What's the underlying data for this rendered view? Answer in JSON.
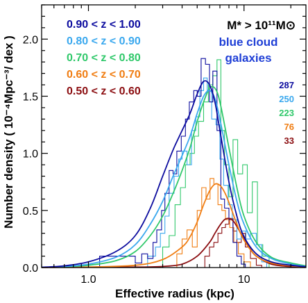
{
  "chart_data": {
    "type": "line",
    "xlabel": "Effective radius (kpc)",
    "ylabel": "Number density ( 10⁻⁴Mpc⁻³/ dex )",
    "xscale": "log",
    "xlim": [
      0.5,
      25
    ],
    "ylim": [
      0,
      2.3
    ],
    "xticks": [
      {
        "value": 1.0,
        "label": "1.0"
      },
      {
        "value": 10,
        "label": "10"
      }
    ],
    "yticks": [
      {
        "value": 0.0,
        "label": "0.0"
      },
      {
        "value": 0.5,
        "label": "0.5"
      },
      {
        "value": 1.0,
        "label": "1.0"
      },
      {
        "value": 1.5,
        "label": "1.5"
      },
      {
        "value": 2.0,
        "label": "2.0"
      }
    ],
    "grid": false,
    "annotation": {
      "mass_cut": "M* > 10¹¹M⊙",
      "sample_line1": "blue cloud",
      "sample_line2": "galaxies",
      "color": "#1f3fd6"
    },
    "legend_position": "top-left",
    "series": [
      {
        "name": "0.90 < z < 1.00",
        "color": "#0b0b9e",
        "count": "287",
        "fit": [
          [
            0.5,
            0.003
          ],
          [
            0.7,
            0.015
          ],
          [
            1.0,
            0.05
          ],
          [
            1.5,
            0.14
          ],
          [
            2.0,
            0.28
          ],
          [
            2.5,
            0.52
          ],
          [
            3.0,
            0.8
          ],
          [
            3.5,
            1.03
          ],
          [
            4.0,
            1.2
          ],
          [
            4.5,
            1.35
          ],
          [
            5.0,
            1.52
          ],
          [
            5.5,
            1.63
          ],
          [
            6.0,
            1.6
          ],
          [
            6.5,
            1.45
          ],
          [
            7.0,
            1.2
          ],
          [
            8.0,
            0.75
          ],
          [
            9.0,
            0.45
          ],
          [
            10.0,
            0.27
          ],
          [
            12.0,
            0.12
          ],
          [
            15.0,
            0.05
          ],
          [
            20.0,
            0.02
          ],
          [
            25.0,
            0.008
          ]
        ],
        "hist": [
          [
            0.72,
            0.0
          ],
          [
            1.05,
            0.0
          ],
          [
            1.18,
            0.1
          ],
          [
            1.6,
            0.1
          ],
          [
            2.0,
            0.04
          ],
          [
            2.2,
            0.12
          ],
          [
            2.4,
            0.08
          ],
          [
            2.6,
            0.22
          ],
          [
            2.75,
            0.33
          ],
          [
            2.95,
            0.5
          ],
          [
            3.1,
            0.65
          ],
          [
            3.3,
            0.85
          ],
          [
            3.5,
            0.82
          ],
          [
            3.7,
            1.02
          ],
          [
            3.95,
            1.15
          ],
          [
            4.2,
            1.3
          ],
          [
            4.45,
            1.45
          ],
          [
            4.75,
            1.55
          ],
          [
            5.0,
            1.5
          ],
          [
            5.3,
            1.83
          ],
          [
            5.65,
            1.78
          ],
          [
            6.0,
            1.45
          ],
          [
            6.3,
            1.72
          ],
          [
            6.7,
            1.2
          ],
          [
            7.1,
            0.6
          ],
          [
            7.5,
            0.52
          ],
          [
            8.0,
            0.42
          ],
          [
            8.5,
            0.22
          ],
          [
            9.0,
            0.1
          ],
          [
            9.6,
            0.03
          ],
          [
            10.2,
            0.0
          ]
        ]
      },
      {
        "name": "0.80 < z < 0.90",
        "color": "#3aa8ee",
        "count": "250",
        "fit": [
          [
            0.5,
            0.002
          ],
          [
            0.7,
            0.01
          ],
          [
            1.0,
            0.03
          ],
          [
            1.5,
            0.09
          ],
          [
            2.0,
            0.2
          ],
          [
            2.5,
            0.38
          ],
          [
            3.0,
            0.58
          ],
          [
            3.5,
            0.8
          ],
          [
            4.0,
            0.98
          ],
          [
            4.5,
            1.15
          ],
          [
            5.0,
            1.35
          ],
          [
            5.5,
            1.5
          ],
          [
            6.0,
            1.55
          ],
          [
            6.5,
            1.48
          ],
          [
            7.0,
            1.3
          ],
          [
            8.0,
            0.9
          ],
          [
            9.0,
            0.58
          ],
          [
            10.0,
            0.38
          ],
          [
            12.0,
            0.18
          ],
          [
            15.0,
            0.08
          ],
          [
            20.0,
            0.03
          ],
          [
            25.0,
            0.01
          ]
        ],
        "hist": [
          [
            2.3,
            0.0
          ],
          [
            2.4,
            0.1
          ],
          [
            2.7,
            0.18
          ],
          [
            2.9,
            0.3
          ],
          [
            3.1,
            0.45
          ],
          [
            3.3,
            0.65
          ],
          [
            3.55,
            0.8
          ],
          [
            3.8,
            0.95
          ],
          [
            4.0,
            1.02
          ],
          [
            4.3,
            0.9
          ],
          [
            4.6,
            1.2
          ],
          [
            4.9,
            1.32
          ],
          [
            5.2,
            1.55
          ],
          [
            5.5,
            1.66
          ],
          [
            5.8,
            1.55
          ],
          [
            6.2,
            1.3
          ],
          [
            6.6,
            1.25
          ],
          [
            7.0,
            0.95
          ],
          [
            7.4,
            0.72
          ],
          [
            7.9,
            0.55
          ],
          [
            8.4,
            0.42
          ],
          [
            9.0,
            0.25
          ],
          [
            9.6,
            0.32
          ],
          [
            10.3,
            0.25
          ],
          [
            11.0,
            0.3
          ],
          [
            12.0,
            0.2
          ],
          [
            13.0,
            0.05
          ],
          [
            14.0,
            0.0
          ]
        ]
      },
      {
        "name": "0.70 < z < 0.80",
        "color": "#2fc86a",
        "count": "223",
        "fit": [
          [
            0.5,
            0.002
          ],
          [
            0.7,
            0.008
          ],
          [
            1.0,
            0.02
          ],
          [
            1.5,
            0.06
          ],
          [
            2.0,
            0.14
          ],
          [
            2.5,
            0.28
          ],
          [
            3.0,
            0.45
          ],
          [
            3.5,
            0.65
          ],
          [
            4.0,
            0.85
          ],
          [
            4.5,
            1.05
          ],
          [
            5.0,
            1.28
          ],
          [
            5.5,
            1.45
          ],
          [
            6.0,
            1.57
          ],
          [
            6.5,
            1.57
          ],
          [
            7.0,
            1.45
          ],
          [
            8.0,
            1.05
          ],
          [
            9.0,
            0.7
          ],
          [
            10.0,
            0.45
          ],
          [
            12.0,
            0.22
          ],
          [
            15.0,
            0.09
          ],
          [
            20.0,
            0.04
          ],
          [
            25.0,
            0.015
          ]
        ],
        "hist": [
          [
            2.8,
            0.0
          ],
          [
            3.0,
            0.18
          ],
          [
            3.3,
            0.28
          ],
          [
            3.6,
            0.55
          ],
          [
            3.9,
            0.7
          ],
          [
            4.2,
            0.9
          ],
          [
            4.5,
            1.0
          ],
          [
            4.8,
            1.15
          ],
          [
            5.1,
            1.28
          ],
          [
            5.5,
            1.45
          ],
          [
            5.9,
            1.6
          ],
          [
            6.3,
            1.68
          ],
          [
            6.7,
            1.82
          ],
          [
            7.1,
            1.2
          ],
          [
            7.5,
            0.9
          ],
          [
            8.0,
            0.62
          ],
          [
            8.5,
            1.12
          ],
          [
            9.1,
            0.82
          ],
          [
            9.8,
            0.9
          ],
          [
            10.5,
            0.48
          ],
          [
            11.3,
            0.75
          ],
          [
            12.2,
            0.2
          ],
          [
            13.2,
            0.1
          ],
          [
            14.5,
            0.0
          ]
        ]
      },
      {
        "name": "0.60 < z < 0.70",
        "color": "#f07d12",
        "count": "76",
        "fit": [
          [
            0.5,
            0.001
          ],
          [
            1.0,
            0.005
          ],
          [
            2.0,
            0.02
          ],
          [
            3.0,
            0.07
          ],
          [
            4.0,
            0.18
          ],
          [
            4.5,
            0.27
          ],
          [
            5.0,
            0.4
          ],
          [
            5.5,
            0.55
          ],
          [
            6.0,
            0.67
          ],
          [
            6.5,
            0.73
          ],
          [
            7.0,
            0.72
          ],
          [
            7.5,
            0.66
          ],
          [
            8.0,
            0.57
          ],
          [
            9.0,
            0.38
          ],
          [
            10.0,
            0.24
          ],
          [
            12.0,
            0.1
          ],
          [
            15.0,
            0.04
          ],
          [
            20.0,
            0.015
          ],
          [
            25.0,
            0.005
          ]
        ],
        "hist": [
          [
            3.4,
            0.0
          ],
          [
            3.7,
            0.12
          ],
          [
            4.0,
            0.25
          ],
          [
            4.3,
            0.33
          ],
          [
            4.65,
            0.18
          ],
          [
            5.0,
            0.5
          ],
          [
            5.35,
            0.7
          ],
          [
            5.7,
            0.6
          ],
          [
            6.05,
            0.78
          ],
          [
            6.4,
            0.73
          ],
          [
            6.8,
            0.55
          ],
          [
            7.2,
            0.5
          ],
          [
            7.6,
            0.42
          ],
          [
            8.1,
            0.35
          ],
          [
            8.6,
            0.22
          ],
          [
            9.2,
            0.12
          ],
          [
            10.0,
            0.05
          ],
          [
            11.0,
            0.0
          ]
        ]
      },
      {
        "name": "0.50 < z < 0.60",
        "color": "#8b0d10",
        "count": "33",
        "fit": [
          [
            0.5,
            0.001
          ],
          [
            2.0,
            0.004
          ],
          [
            3.0,
            0.01
          ],
          [
            4.0,
            0.03
          ],
          [
            5.0,
            0.1
          ],
          [
            6.0,
            0.22
          ],
          [
            6.5,
            0.3
          ],
          [
            7.0,
            0.37
          ],
          [
            7.5,
            0.42
          ],
          [
            8.0,
            0.43
          ],
          [
            8.5,
            0.41
          ],
          [
            9.0,
            0.36
          ],
          [
            10.0,
            0.25
          ],
          [
            11.0,
            0.16
          ],
          [
            12.0,
            0.1
          ],
          [
            15.0,
            0.03
          ],
          [
            20.0,
            0.008
          ],
          [
            25.0,
            0.003
          ]
        ],
        "hist": [
          [
            5.2,
            0.0
          ],
          [
            5.6,
            0.1
          ],
          [
            6.0,
            0.18
          ],
          [
            6.4,
            0.22
          ],
          [
            6.8,
            0.3
          ],
          [
            7.2,
            0.35
          ],
          [
            7.6,
            0.38
          ],
          [
            8.0,
            0.43
          ],
          [
            8.5,
            0.32
          ],
          [
            9.0,
            0.22
          ],
          [
            9.6,
            0.3
          ],
          [
            10.2,
            0.18
          ],
          [
            11.0,
            0.08
          ],
          [
            12.0,
            0.02
          ],
          [
            13.0,
            0.0
          ]
        ]
      }
    ]
  }
}
